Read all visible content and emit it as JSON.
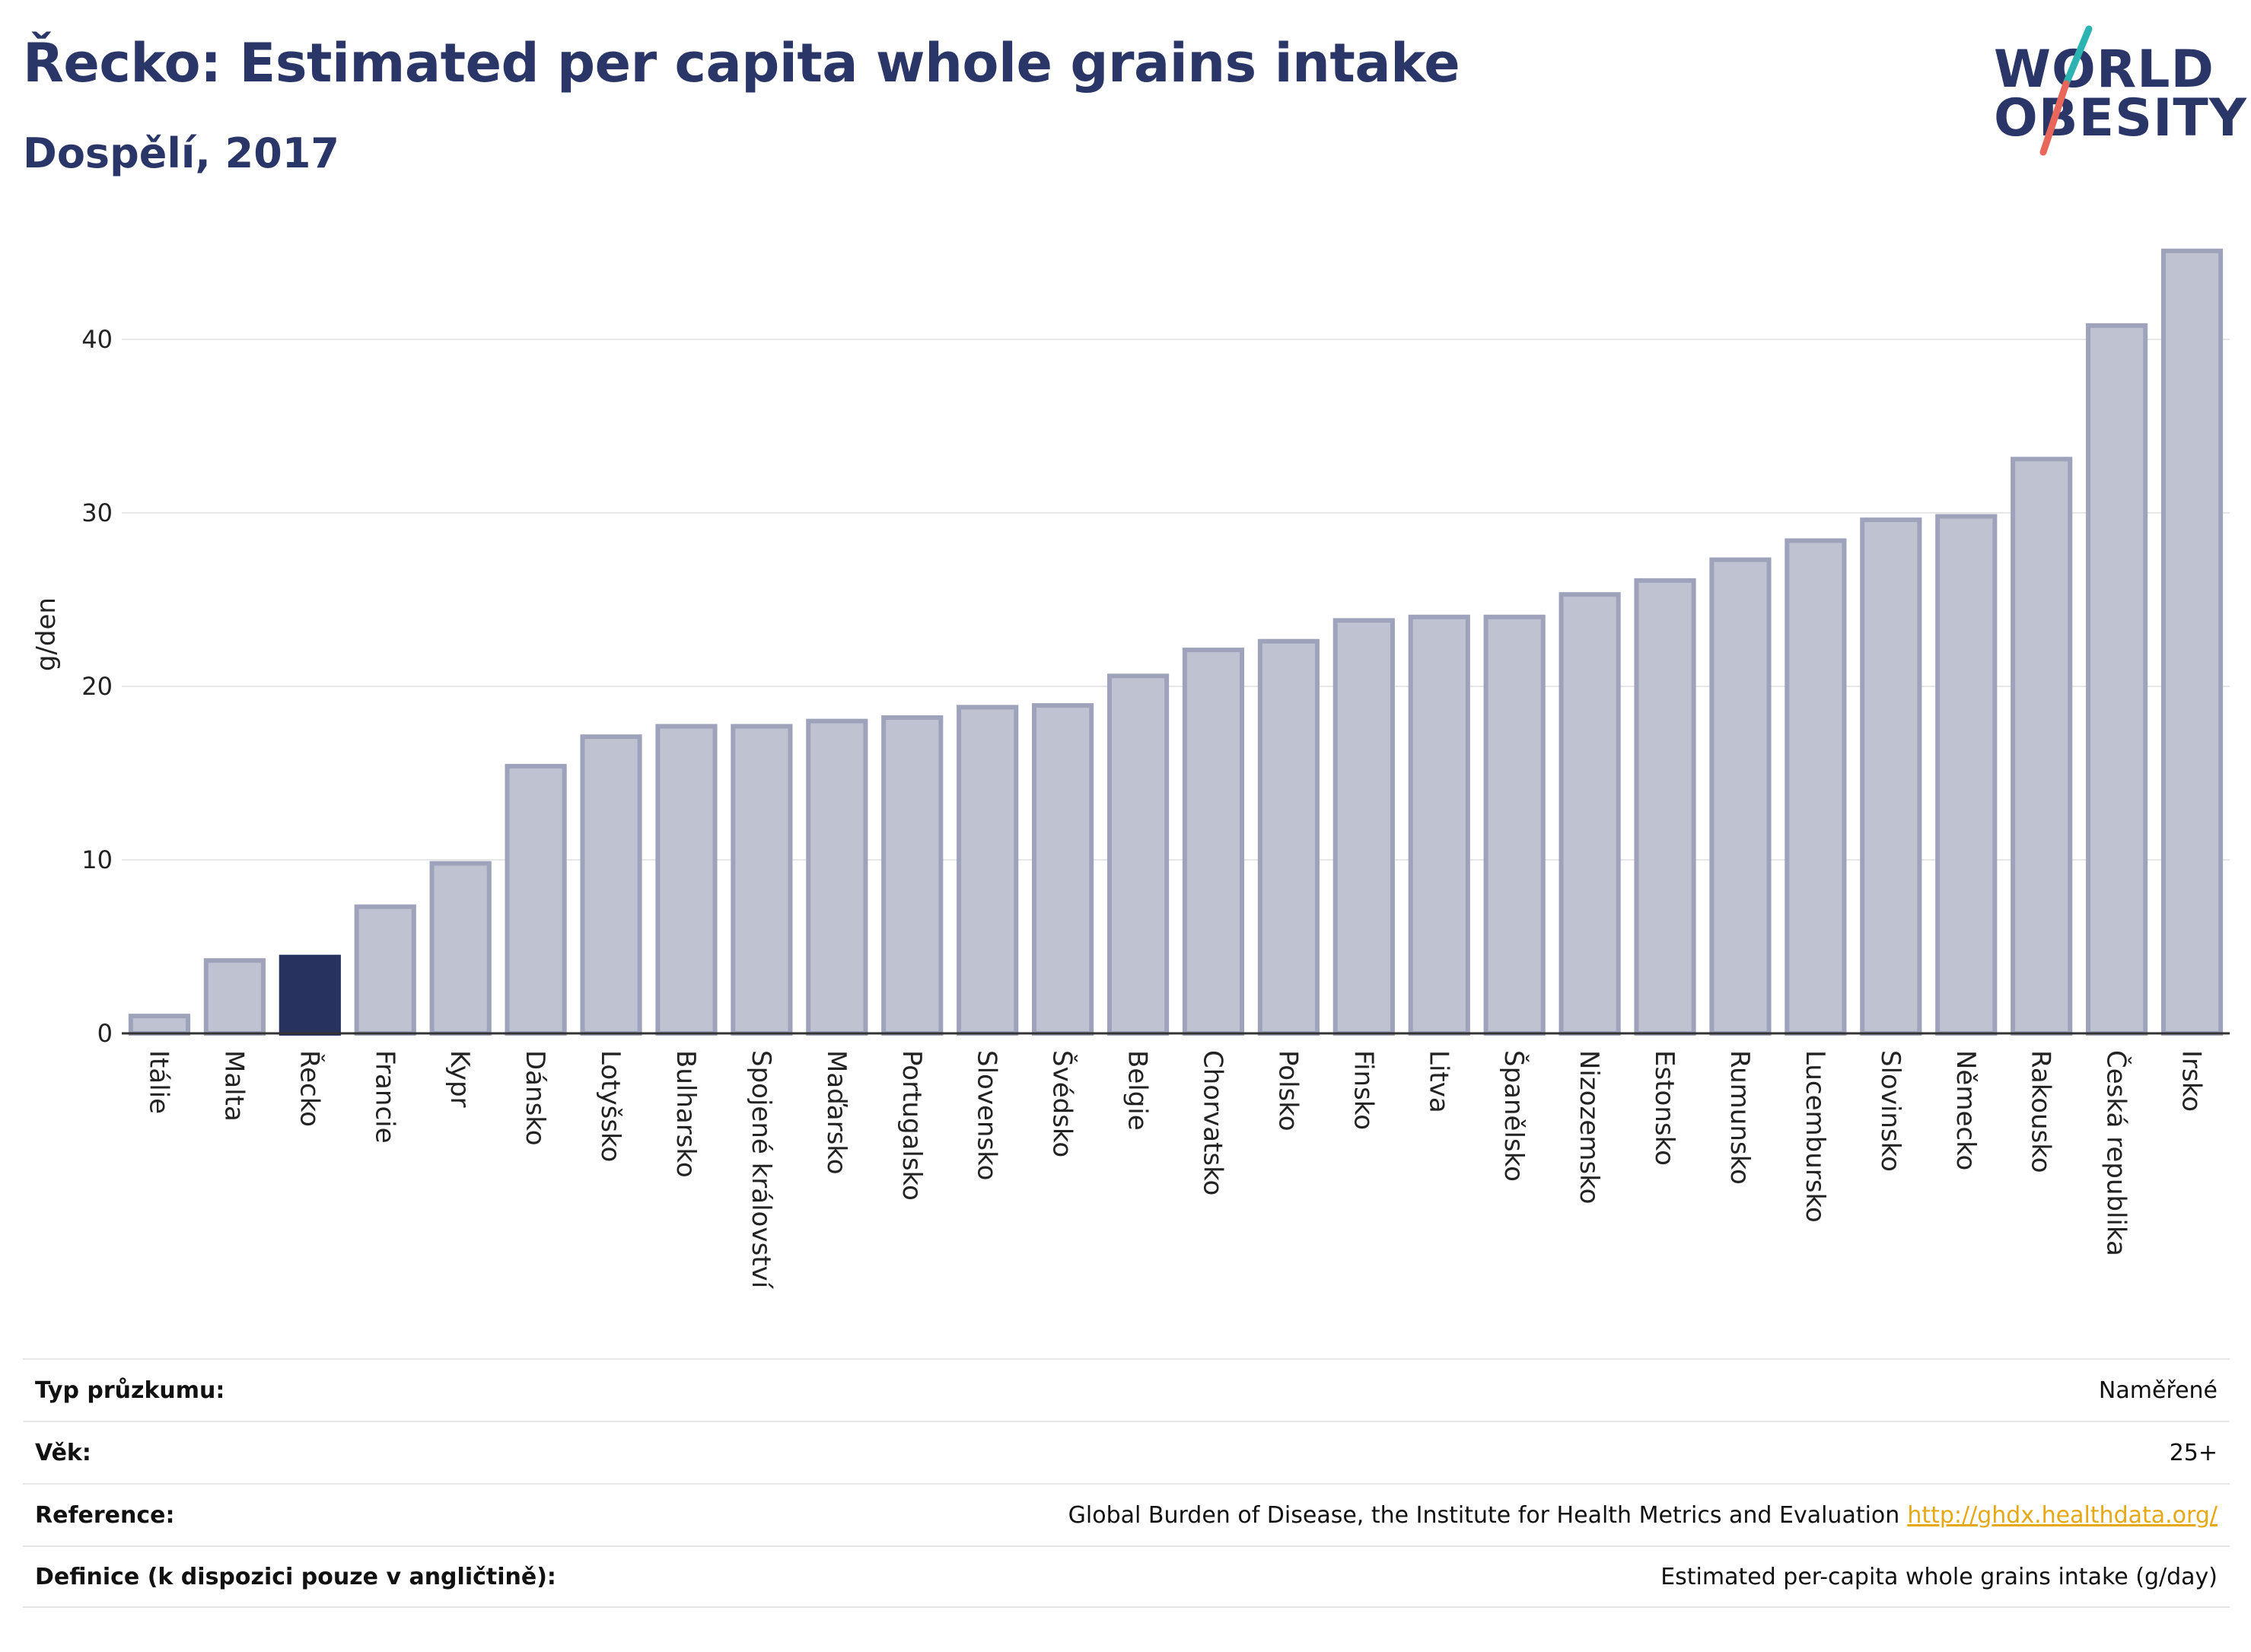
{
  "header": {
    "title": "Řecko: Estimated per capita whole grains intake",
    "subtitle": "Dospělí, 2017",
    "logo_line1": "WORLD",
    "logo_line2": "OBESITY"
  },
  "colors": {
    "title": "#2b3668",
    "bar": "#bfc3d1",
    "bar_border": "#9ea3bb",
    "highlight": "#27325e",
    "logo_teal": "#2bb3b1",
    "logo_coral": "#e8665a",
    "link": "#e6a817"
  },
  "chart_data": {
    "type": "bar",
    "ylabel": "g/den",
    "ylim": [
      0,
      46
    ],
    "yticks": [
      0,
      10,
      20,
      30,
      40
    ],
    "grid": true,
    "highlight": "Řecko",
    "categories": [
      "Itálie",
      "Malta",
      "Řecko",
      "Francie",
      "Kypr",
      "Dánsko",
      "Lotyšsko",
      "Bulharsko",
      "Spojené království",
      "Maďarsko",
      "Portugalsko",
      "Slovensko",
      "Švédsko",
      "Belgie",
      "Chorvatsko",
      "Polsko",
      "Finsko",
      "Litva",
      "Španělsko",
      "Nizozemsko",
      "Estonsko",
      "Rumunsko",
      "Lucembursko",
      "Slovinsko",
      "Německo",
      "Rakousko",
      "Česká republika",
      "Irsko"
    ],
    "values": [
      1.0,
      4.2,
      4.4,
      7.3,
      9.8,
      15.4,
      17.1,
      17.7,
      17.7,
      18.0,
      18.2,
      18.8,
      18.9,
      20.6,
      22.1,
      22.6,
      23.8,
      24.0,
      24.0,
      25.3,
      26.1,
      27.3,
      28.4,
      29.6,
      29.8,
      33.1,
      40.8,
      45.1
    ]
  },
  "info": {
    "rows": [
      {
        "key": "Typ průzkumu:",
        "value": "Naměřené"
      },
      {
        "key": "Věk:",
        "value": "25+"
      },
      {
        "key": "Reference:",
        "value": "Global Burden of Disease, the Institute for Health Metrics and Evaluation",
        "link": "http://ghdx.healthdata.org/"
      },
      {
        "key": "Definice (k dispozici pouze v angličtině):",
        "value": "Estimated per-capita whole grains intake (g/day)"
      }
    ]
  }
}
